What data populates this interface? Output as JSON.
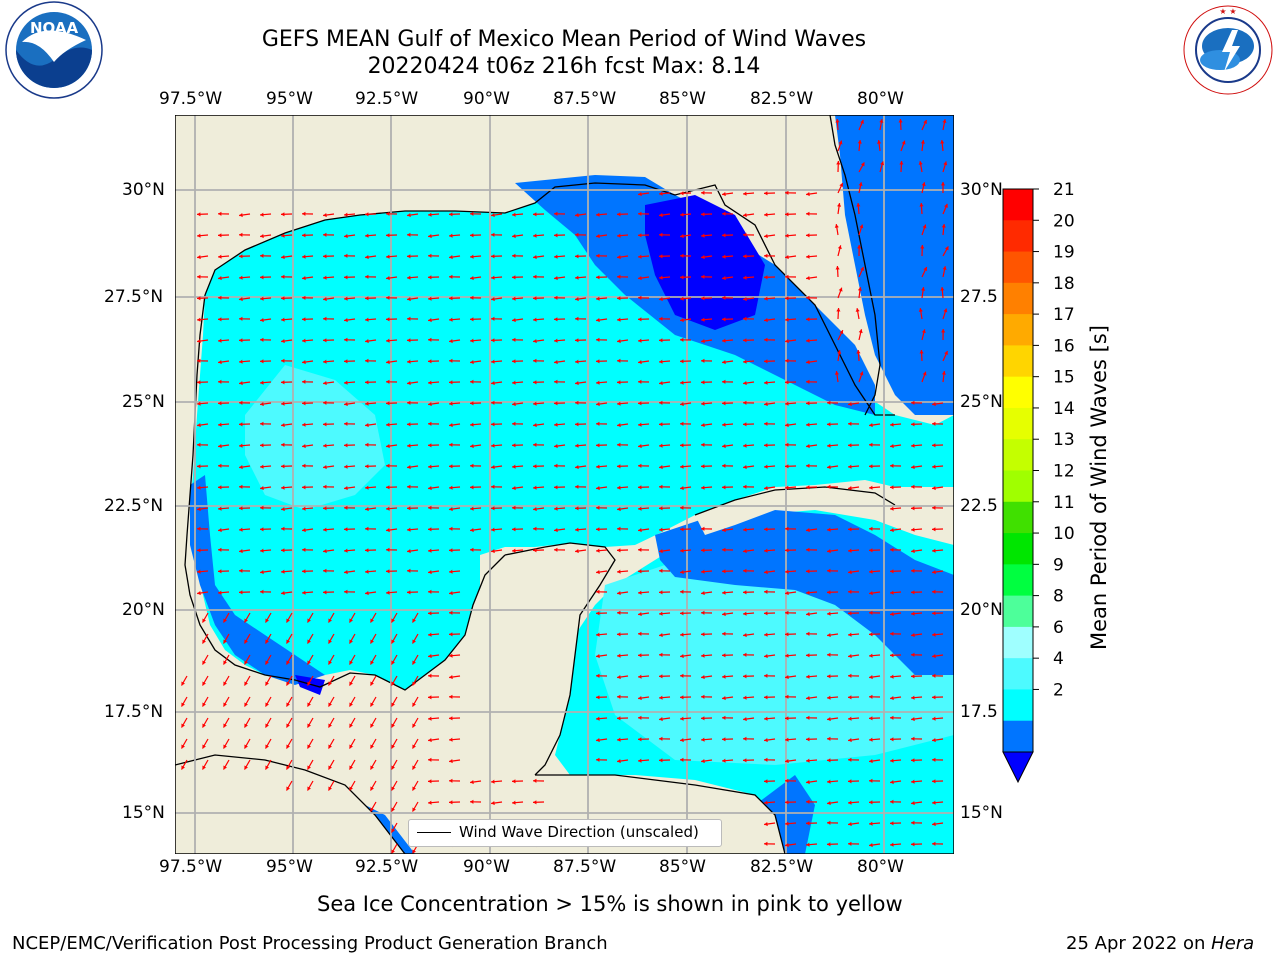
{
  "header": {
    "title_line1": "GEFS MEAN Gulf of Mexico Mean Period of Wind Waves",
    "title_line2": "20220424 t06z 216h fcst   Max: 8.14"
  },
  "logos": {
    "noaa": {
      "text": "NOAA",
      "ring_text": "NATIONAL OCEANIC AND ATMOSPHERIC ADMINISTRATION · U.S. DEPARTMENT OF COMMERCE"
    },
    "nws": {
      "ring_text": "NATIONAL WEATHER SERVICE"
    }
  },
  "map": {
    "lon_labels": [
      "97.5°W",
      "95°W",
      "92.5°W",
      "90°W",
      "87.5°W",
      "85°W",
      "82.5°W",
      "80°W"
    ],
    "lat_labels_left": [
      "30°N",
      "27.5°N",
      "25°N",
      "22.5°N",
      "20°N",
      "17.5°N",
      "15°N"
    ],
    "lat_labels_right": [
      "30°N",
      "27.5",
      "25°N",
      "22.5",
      "20°N",
      "17.5",
      "15°N"
    ],
    "legend_label": "Wind Wave Direction (unscaled)",
    "colors": {
      "land": "#efedda",
      "coast": "#000000",
      "grid": "#b0b0b0",
      "arrow": "#ff0000",
      "bin_2_4": "#0075ff",
      "bin_4_6": "#00ffff",
      "bin_6_8": "#4dfaff",
      "bin_lt_2": "#0000ff"
    }
  },
  "colorbar": {
    "label": "Mean Period of Wind Waves [s]",
    "ticks": [
      "21",
      "20",
      "19",
      "18",
      "17",
      "16",
      "15",
      "14",
      "13",
      "12",
      "11",
      "10",
      "9",
      "8",
      "6",
      "4",
      "2"
    ],
    "colors": [
      "#ff0000",
      "#ff2a00",
      "#ff5500",
      "#ff8000",
      "#ffaa00",
      "#ffd500",
      "#ffff00",
      "#e6ff00",
      "#c4ff00",
      "#a0ff00",
      "#40e000",
      "#00e600",
      "#00ff40",
      "#4dff9a",
      "#9fffff",
      "#4dfaff",
      "#00ffff",
      "#0075ff"
    ],
    "underflow_color": "#0000ff"
  },
  "footer": {
    "sea_ice_note": "Sea Ice Concentration > 15% is shown in pink to yellow",
    "credit": "NCEP/EMC/Verification Post Processing Product Generation Branch",
    "date_text": "25 Apr 2022 on ",
    "machine": "Hera"
  }
}
